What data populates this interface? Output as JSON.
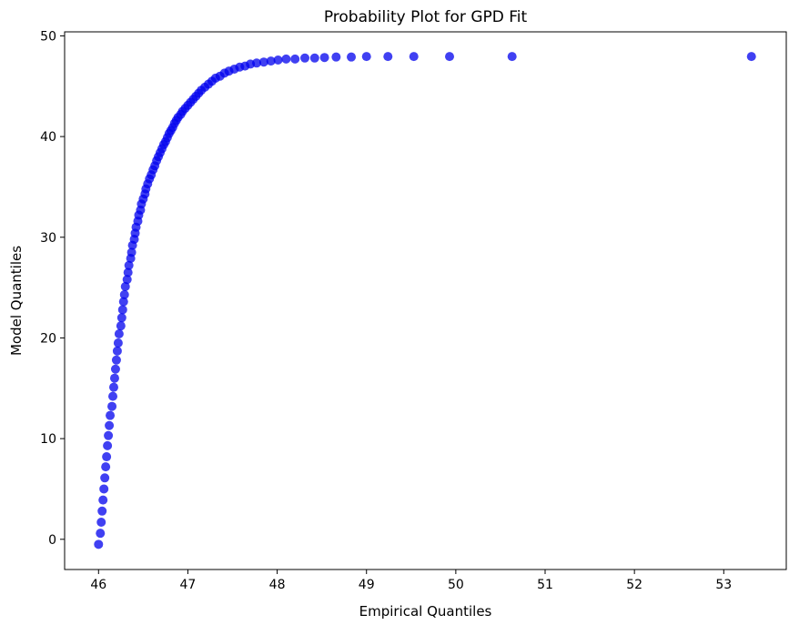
{
  "chart_data": {
    "type": "scatter",
    "title": "Probability Plot for GPD Fit",
    "xlabel": "Empirical Quantiles",
    "ylabel": "Model Quantiles",
    "xlim": [
      45.62,
      53.7
    ],
    "ylim": [
      -3.0,
      50.4
    ],
    "xticks": [
      46,
      47,
      48,
      49,
      50,
      51,
      52,
      53
    ],
    "yticks": [
      0,
      10,
      20,
      30,
      40,
      50
    ],
    "grid": false,
    "legend": "none",
    "marker_color": "#0000ee",
    "series": [
      {
        "x": [
          46.0,
          46.02,
          46.03,
          46.04,
          46.05,
          46.06,
          46.07,
          46.08,
          46.09,
          46.1,
          46.11,
          46.12,
          46.13,
          46.15,
          46.16,
          46.17,
          46.18,
          46.19,
          46.2,
          46.21,
          46.22,
          46.23,
          46.25,
          46.26,
          46.27,
          46.28,
          46.29,
          46.3,
          46.32,
          46.33,
          46.34,
          46.36,
          46.37,
          46.38,
          46.4,
          46.41,
          46.42,
          46.44,
          46.45,
          46.47,
          46.48,
          46.5,
          46.52,
          46.53,
          46.55,
          46.57,
          46.59,
          46.61,
          46.63,
          46.65,
          46.67,
          46.69,
          46.71,
          46.73,
          46.75,
          46.77,
          46.79,
          46.81,
          46.83,
          46.85,
          46.87,
          46.89,
          46.92,
          46.94,
          46.97,
          47.0,
          47.03,
          47.06,
          47.09,
          47.12,
          47.15,
          47.19,
          47.23,
          47.27,
          47.31,
          47.36,
          47.41,
          47.46,
          47.52,
          47.58,
          47.64,
          47.7,
          47.77,
          47.85,
          47.93,
          48.01,
          48.1,
          48.2,
          48.31,
          48.42,
          48.53,
          48.66,
          48.83,
          49.0,
          49.24,
          49.53,
          49.93,
          50.63,
          53.31
        ],
        "y": [
          -0.5,
          0.6,
          1.7,
          2.8,
          3.9,
          5.0,
          6.1,
          7.2,
          8.2,
          9.3,
          10.3,
          11.3,
          12.3,
          13.2,
          14.2,
          15.1,
          16.0,
          16.9,
          17.8,
          18.7,
          19.5,
          20.4,
          21.2,
          22.0,
          22.8,
          23.6,
          24.3,
          25.1,
          25.8,
          26.5,
          27.2,
          27.9,
          28.5,
          29.2,
          29.8,
          30.4,
          31.0,
          31.6,
          32.2,
          32.7,
          33.3,
          33.8,
          34.3,
          34.8,
          35.3,
          35.8,
          36.2,
          36.7,
          37.1,
          37.6,
          38.0,
          38.4,
          38.8,
          39.2,
          39.5,
          39.9,
          40.3,
          40.6,
          40.9,
          41.3,
          41.6,
          41.9,
          42.2,
          42.5,
          42.8,
          43.1,
          43.4,
          43.7,
          44.0,
          44.3,
          44.6,
          44.9,
          45.2,
          45.5,
          45.8,
          46.0,
          46.3,
          46.5,
          46.7,
          46.9,
          47.0,
          47.2,
          47.3,
          47.4,
          47.5,
          47.6,
          47.7,
          47.7,
          47.8,
          47.8,
          47.85,
          47.9,
          47.9,
          47.95,
          47.95,
          47.95,
          47.95,
          47.95,
          47.95
        ]
      }
    ]
  }
}
